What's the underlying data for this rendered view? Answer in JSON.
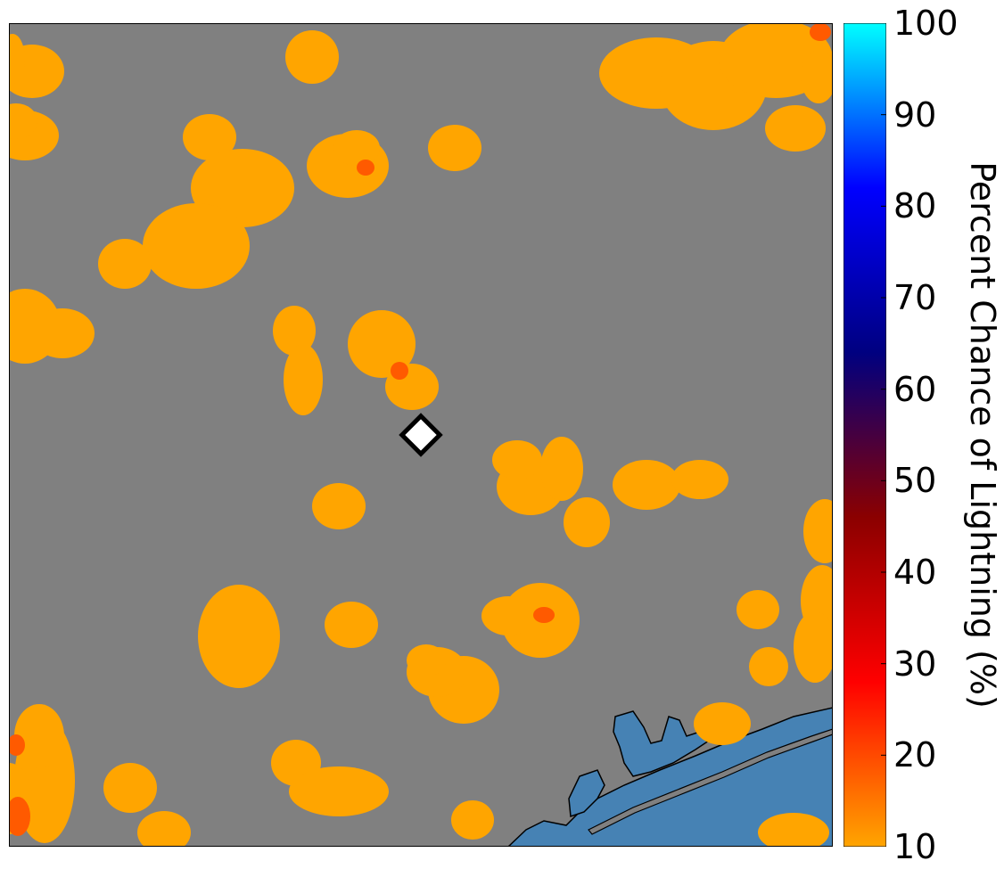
{
  "colorbar": {
    "label": "Percent Chance of Lightning (%)",
    "min": 10,
    "max": 100,
    "ticks": [
      "10",
      "20",
      "30",
      "40",
      "50",
      "60",
      "70",
      "80",
      "90",
      "100"
    ],
    "colors": [
      "#ffa500",
      "#ff0000",
      "#8b0000",
      "#000080",
      "#0000ff",
      "#00ffff"
    ]
  },
  "map": {
    "land_color": "#808080",
    "water_color": "#4682b4",
    "probability_fill_color": "#ffa500",
    "peak_fill_color": "#ff5a00",
    "marker": "white-diamond-marker",
    "coastline": "black"
  }
}
